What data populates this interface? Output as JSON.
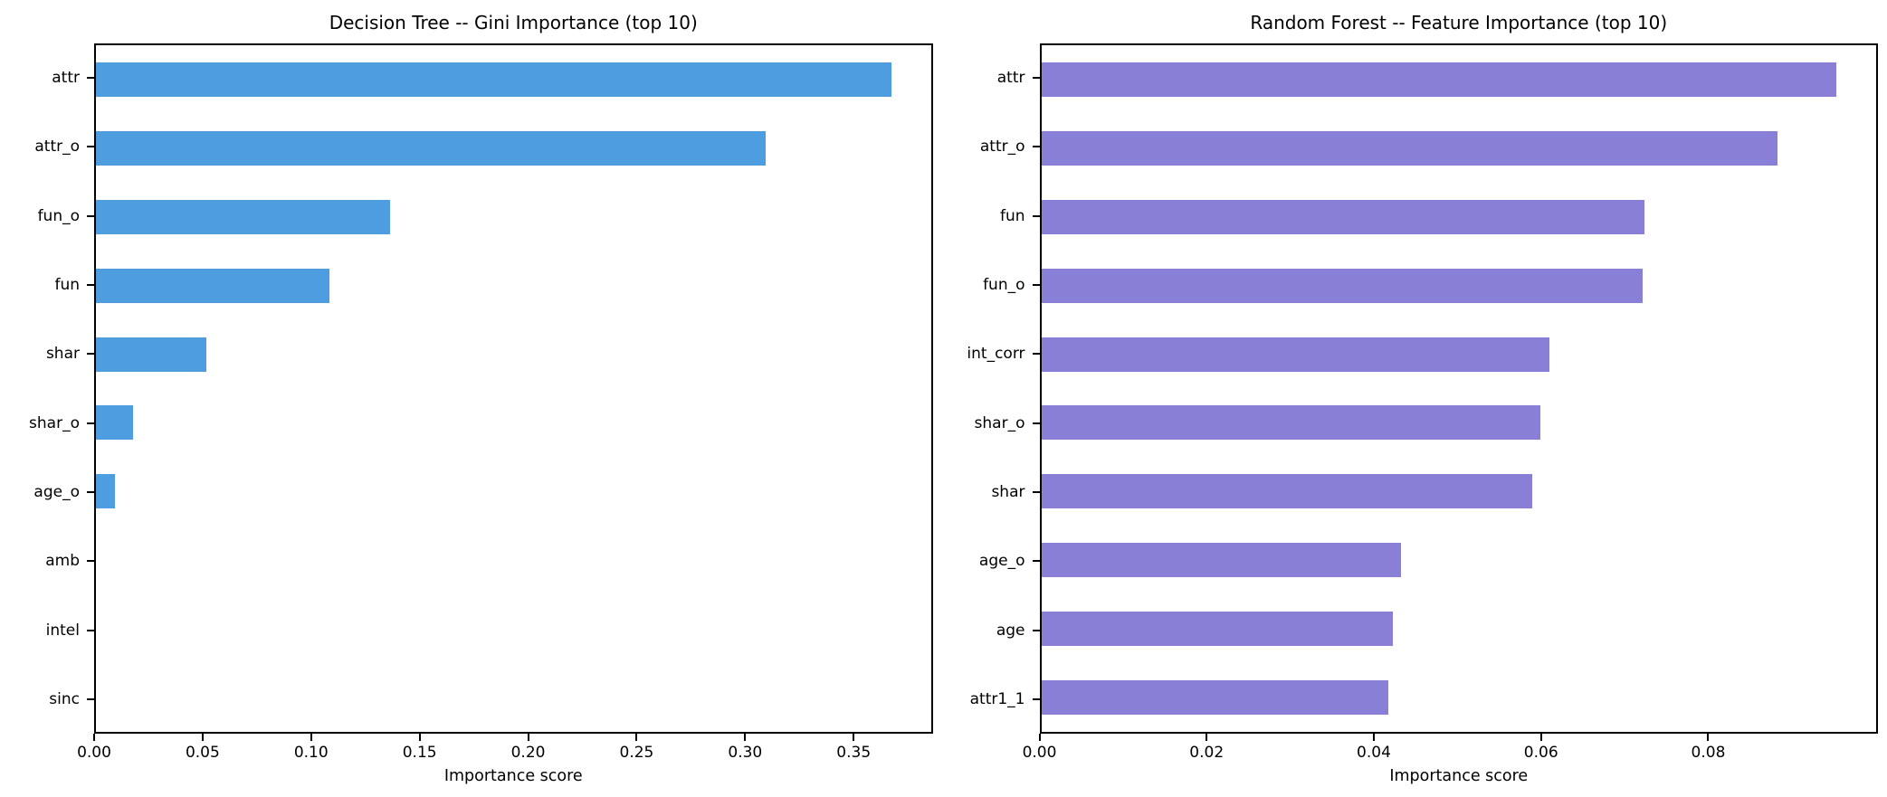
{
  "figure": {
    "background": "#ffffff"
  },
  "chart_data": [
    {
      "type": "bar",
      "orientation": "horizontal",
      "title": "Decision Tree -- Gini Importance (top 10)",
      "xlabel": "Importance score",
      "ylabel": "",
      "categories": [
        "attr",
        "attr_o",
        "fun_o",
        "fun",
        "shar",
        "shar_o",
        "age_o",
        "amb",
        "intel",
        "sinc"
      ],
      "values": [
        0.368,
        0.31,
        0.136,
        0.108,
        0.051,
        0.017,
        0.009,
        0.0,
        0.0,
        0.0
      ],
      "xlim": [
        0,
        0.3864
      ],
      "xticks": [
        0.0,
        0.05,
        0.1,
        0.15,
        0.2,
        0.25,
        0.3,
        0.35
      ],
      "xtick_labels": [
        "0.00",
        "0.05",
        "0.10",
        "0.15",
        "0.20",
        "0.25",
        "0.30",
        "0.35"
      ],
      "bar_color": "#4D9DE0",
      "grid": false,
      "legend": "none"
    },
    {
      "type": "bar",
      "orientation": "horizontal",
      "title": "Random Forest -- Feature Importance (top 10)",
      "xlabel": "Importance score",
      "ylabel": "",
      "categories": [
        "attr",
        "attr_o",
        "fun",
        "fun_o",
        "int_corr",
        "shar_o",
        "shar",
        "age_o",
        "age",
        "attr1_1"
      ],
      "values": [
        0.0955,
        0.0885,
        0.0725,
        0.0722,
        0.061,
        0.06,
        0.059,
        0.0432,
        0.0422,
        0.0417
      ],
      "xlim": [
        0,
        0.1003
      ],
      "xticks": [
        0.0,
        0.02,
        0.04,
        0.06,
        0.08
      ],
      "xtick_labels": [
        "0.00",
        "0.02",
        "0.04",
        "0.06",
        "0.08"
      ],
      "bar_color": "#8A7FD6",
      "grid": false,
      "legend": "none"
    }
  ]
}
